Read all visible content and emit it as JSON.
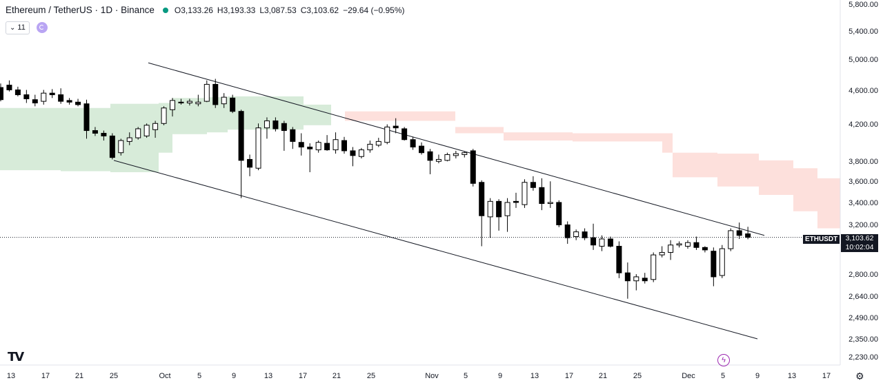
{
  "header": {
    "title": "Ethereum / TetherUS · 1D · Binance",
    "open_label": "O",
    "open": "3,133.26",
    "high_label": "H",
    "high": "3,193.33",
    "low_label": "L",
    "low": "3,087.53",
    "close_label": "C",
    "close": "3,103.62",
    "change": "−29.64 (−0.95%)"
  },
  "indicator_bar": {
    "count": "11"
  },
  "last_price": {
    "symbol": "ETHUSDT",
    "price": "3,103.62",
    "countdown": "10:02:04"
  },
  "colors": {
    "cloud_green": "#d7ebd9",
    "cloud_red": "#fde0dc",
    "up_candle": "#ffffff",
    "down_candle": "#000000",
    "live_dot": "#089981",
    "accent": "#9c27b0"
  },
  "icons": {
    "logo": "tradingview-logo-icon",
    "sync": "sync-icon",
    "bolt": "lightning-icon",
    "gear": "gear-icon"
  },
  "chart_data": {
    "type": "candlestick",
    "scale": "log",
    "price_labels": [
      "5,800.00",
      "5,400.00",
      "5,000.00",
      "4,600.00",
      "4,200.00",
      "3,800.00",
      "3,600.00",
      "3,400.00",
      "3,200.00",
      "2,800.00",
      "2,640.00",
      "2,490.00",
      "2,350.00",
      "2,230.00"
    ],
    "price_ticks": [
      5800,
      5400,
      5000,
      4600,
      4200,
      3800,
      3600,
      3400,
      3200,
      2800,
      2640,
      2490,
      2350,
      2230
    ],
    "time_labels": [
      "13",
      "17",
      "21",
      "25",
      "Oct",
      "5",
      "9",
      "13",
      "17",
      "21",
      "25",
      "Nov",
      "5",
      "9",
      "13",
      "17",
      "21",
      "25",
      "Dec",
      "5",
      "9",
      "13",
      "17"
    ],
    "candles": [
      {
        "o": 4650,
        "h": 4700,
        "l": 4480,
        "c": 4500
      },
      {
        "o": 4680,
        "h": 4740,
        "l": 4600,
        "c": 4620
      },
      {
        "o": 4620,
        "h": 4660,
        "l": 4540,
        "c": 4560
      },
      {
        "o": 4560,
        "h": 4620,
        "l": 4460,
        "c": 4510
      },
      {
        "o": 4500,
        "h": 4560,
        "l": 4420,
        "c": 4460
      },
      {
        "o": 4480,
        "h": 4620,
        "l": 4440,
        "c": 4580
      },
      {
        "o": 4580,
        "h": 4630,
        "l": 4520,
        "c": 4560
      },
      {
        "o": 4560,
        "h": 4640,
        "l": 4450,
        "c": 4480
      },
      {
        "o": 4490,
        "h": 4520,
        "l": 4440,
        "c": 4470
      },
      {
        "o": 4470,
        "h": 4510,
        "l": 4420,
        "c": 4440
      },
      {
        "o": 4450,
        "h": 4500,
        "l": 4050,
        "c": 4140
      },
      {
        "o": 4140,
        "h": 4180,
        "l": 4080,
        "c": 4110
      },
      {
        "o": 4110,
        "h": 4140,
        "l": 4030,
        "c": 4080
      },
      {
        "o": 4080,
        "h": 4110,
        "l": 3830,
        "c": 3850
      },
      {
        "o": 3900,
        "h": 4050,
        "l": 3870,
        "c": 4030
      },
      {
        "o": 4020,
        "h": 4120,
        "l": 3980,
        "c": 4060
      },
      {
        "o": 4060,
        "h": 4180,
        "l": 4040,
        "c": 4160
      },
      {
        "o": 4080,
        "h": 4220,
        "l": 4060,
        "c": 4200
      },
      {
        "o": 4150,
        "h": 4250,
        "l": 4060,
        "c": 4220
      },
      {
        "o": 4220,
        "h": 4420,
        "l": 4200,
        "c": 4400
      },
      {
        "o": 4380,
        "h": 4520,
        "l": 4300,
        "c": 4490
      },
      {
        "o": 4470,
        "h": 4510,
        "l": 4440,
        "c": 4460
      },
      {
        "o": 4460,
        "h": 4510,
        "l": 4430,
        "c": 4480
      },
      {
        "o": 4450,
        "h": 4560,
        "l": 4420,
        "c": 4470
      },
      {
        "o": 4480,
        "h": 4740,
        "l": 4470,
        "c": 4690
      },
      {
        "o": 4690,
        "h": 4760,
        "l": 4400,
        "c": 4440
      },
      {
        "o": 4450,
        "h": 4580,
        "l": 4400,
        "c": 4530
      },
      {
        "o": 4520,
        "h": 4560,
        "l": 4340,
        "c": 4360
      },
      {
        "o": 4360,
        "h": 4380,
        "l": 3450,
        "c": 3820
      },
      {
        "o": 3830,
        "h": 3880,
        "l": 3660,
        "c": 3750
      },
      {
        "o": 3740,
        "h": 4220,
        "l": 3720,
        "c": 4170
      },
      {
        "o": 4170,
        "h": 4290,
        "l": 4050,
        "c": 4250
      },
      {
        "o": 4250,
        "h": 4290,
        "l": 4130,
        "c": 4160
      },
      {
        "o": 4220,
        "h": 4250,
        "l": 3920,
        "c": 4140
      },
      {
        "o": 4150,
        "h": 4180,
        "l": 3940,
        "c": 4020
      },
      {
        "o": 4010,
        "h": 4110,
        "l": 3870,
        "c": 3960
      },
      {
        "o": 3960,
        "h": 4000,
        "l": 3700,
        "c": 3940
      },
      {
        "o": 3930,
        "h": 4030,
        "l": 3900,
        "c": 4010
      },
      {
        "o": 4000,
        "h": 4090,
        "l": 3920,
        "c": 3930
      },
      {
        "o": 3930,
        "h": 4120,
        "l": 3890,
        "c": 4040
      },
      {
        "o": 4030,
        "h": 4070,
        "l": 3890,
        "c": 3920
      },
      {
        "o": 3920,
        "h": 3960,
        "l": 3760,
        "c": 3870
      },
      {
        "o": 3860,
        "h": 3950,
        "l": 3840,
        "c": 3930
      },
      {
        "o": 3930,
        "h": 4030,
        "l": 3900,
        "c": 3990
      },
      {
        "o": 3980,
        "h": 4060,
        "l": 3960,
        "c": 4020
      },
      {
        "o": 4010,
        "h": 4210,
        "l": 3990,
        "c": 4180
      },
      {
        "o": 4190,
        "h": 4280,
        "l": 4110,
        "c": 4170
      },
      {
        "o": 4160,
        "h": 4180,
        "l": 4030,
        "c": 4040
      },
      {
        "o": 4040,
        "h": 4070,
        "l": 3930,
        "c": 3960
      },
      {
        "o": 3970,
        "h": 4010,
        "l": 3880,
        "c": 3900
      },
      {
        "o": 3910,
        "h": 3940,
        "l": 3680,
        "c": 3820
      },
      {
        "o": 3810,
        "h": 3880,
        "l": 3790,
        "c": 3830
      },
      {
        "o": 3820,
        "h": 3900,
        "l": 3810,
        "c": 3880
      },
      {
        "o": 3870,
        "h": 3920,
        "l": 3840,
        "c": 3890
      },
      {
        "o": 3880,
        "h": 3910,
        "l": 3850,
        "c": 3900
      },
      {
        "o": 3920,
        "h": 3940,
        "l": 3560,
        "c": 3590
      },
      {
        "o": 3600,
        "h": 3620,
        "l": 3030,
        "c": 3290
      },
      {
        "o": 3280,
        "h": 3450,
        "l": 3100,
        "c": 3420
      },
      {
        "o": 3420,
        "h": 3440,
        "l": 3160,
        "c": 3280
      },
      {
        "o": 3290,
        "h": 3450,
        "l": 3150,
        "c": 3410
      },
      {
        "o": 3420,
        "h": 3500,
        "l": 3360,
        "c": 3410
      },
      {
        "o": 3390,
        "h": 3630,
        "l": 3360,
        "c": 3600
      },
      {
        "o": 3600,
        "h": 3660,
        "l": 3520,
        "c": 3550
      },
      {
        "o": 3550,
        "h": 3640,
        "l": 3340,
        "c": 3400
      },
      {
        "o": 3400,
        "h": 3610,
        "l": 3360,
        "c": 3410
      },
      {
        "o": 3410,
        "h": 3430,
        "l": 3190,
        "c": 3210
      },
      {
        "o": 3210,
        "h": 3240,
        "l": 3050,
        "c": 3100
      },
      {
        "o": 3110,
        "h": 3170,
        "l": 3080,
        "c": 3150
      },
      {
        "o": 3150,
        "h": 3180,
        "l": 3080,
        "c": 3100
      },
      {
        "o": 3100,
        "h": 3220,
        "l": 3000,
        "c": 3040
      },
      {
        "o": 3030,
        "h": 3120,
        "l": 2990,
        "c": 3090
      },
      {
        "o": 3090,
        "h": 3110,
        "l": 3020,
        "c": 3030
      },
      {
        "o": 3030,
        "h": 3070,
        "l": 2780,
        "c": 2820
      },
      {
        "o": 2820,
        "h": 2900,
        "l": 2630,
        "c": 2760
      },
      {
        "o": 2760,
        "h": 2810,
        "l": 2690,
        "c": 2790
      },
      {
        "o": 2780,
        "h": 2820,
        "l": 2740,
        "c": 2760
      },
      {
        "o": 2770,
        "h": 2980,
        "l": 2750,
        "c": 2960
      },
      {
        "o": 2960,
        "h": 3030,
        "l": 2940,
        "c": 2980
      },
      {
        "o": 2980,
        "h": 3080,
        "l": 2920,
        "c": 3040
      },
      {
        "o": 3040,
        "h": 3070,
        "l": 3020,
        "c": 3050
      },
      {
        "o": 3030,
        "h": 3080,
        "l": 3010,
        "c": 3060
      },
      {
        "o": 3060,
        "h": 3110,
        "l": 3000,
        "c": 3020
      },
      {
        "o": 3020,
        "h": 3030,
        "l": 2980,
        "c": 3000
      },
      {
        "o": 2990,
        "h": 3020,
        "l": 2720,
        "c": 2790
      },
      {
        "o": 2800,
        "h": 3040,
        "l": 2780,
        "c": 3010
      },
      {
        "o": 3010,
        "h": 3180,
        "l": 2990,
        "c": 3160
      },
      {
        "o": 3160,
        "h": 3230,
        "l": 3090,
        "c": 3120
      },
      {
        "o": 3133.26,
        "h": 3193.33,
        "l": 3087.53,
        "c": 3103.62
      }
    ],
    "cloud_green": [
      {
        "x1": 0,
        "x2": 88,
        "top": 4400,
        "bottom": 3720
      },
      {
        "x1": 88,
        "x2": 160,
        "top": 4400,
        "bottom": 3710
      },
      {
        "x1": 160,
        "x2": 230,
        "top": 4450,
        "bottom": 3700
      },
      {
        "x1": 230,
        "x2": 250,
        "top": 4460,
        "bottom": 3900
      },
      {
        "x1": 250,
        "x2": 300,
        "top": 4520,
        "bottom": 4100
      },
      {
        "x1": 300,
        "x2": 330,
        "top": 4530,
        "bottom": 4120
      },
      {
        "x1": 330,
        "x2": 370,
        "top": 4540,
        "bottom": 4150
      },
      {
        "x1": 370,
        "x2": 440,
        "top": 4540,
        "bottom": 4150
      },
      {
        "x1": 440,
        "x2": 480,
        "top": 4440,
        "bottom": 4200
      }
    ],
    "cloud_red": [
      {
        "x1": 500,
        "x2": 660,
        "top": 4360,
        "bottom": 4250
      },
      {
        "x1": 660,
        "x2": 730,
        "top": 4180,
        "bottom": 4110
      },
      {
        "x1": 730,
        "x2": 830,
        "top": 4120,
        "bottom": 4030
      },
      {
        "x1": 830,
        "x2": 960,
        "top": 4110,
        "bottom": 4020
      },
      {
        "x1": 960,
        "x2": 975,
        "top": 4110,
        "bottom": 3900
      },
      {
        "x1": 975,
        "x2": 1040,
        "top": 3900,
        "bottom": 3650
      },
      {
        "x1": 1040,
        "x2": 1100,
        "top": 3890,
        "bottom": 3560
      },
      {
        "x1": 1100,
        "x2": 1150,
        "top": 3820,
        "bottom": 3480
      },
      {
        "x1": 1150,
        "x2": 1185,
        "top": 3740,
        "bottom": 3330
      },
      {
        "x1": 1185,
        "x2": 1218,
        "top": 3640,
        "bottom": 3180
      }
    ],
    "channel_upper": [
      {
        "x": 215,
        "price": 4970
      },
      {
        "x": 1108,
        "price": 3120
      }
    ],
    "channel_lower": [
      {
        "x": 165,
        "price": 3820
      },
      {
        "x": 1098,
        "price": 2360
      }
    ],
    "last_price_value": 3103.62
  }
}
